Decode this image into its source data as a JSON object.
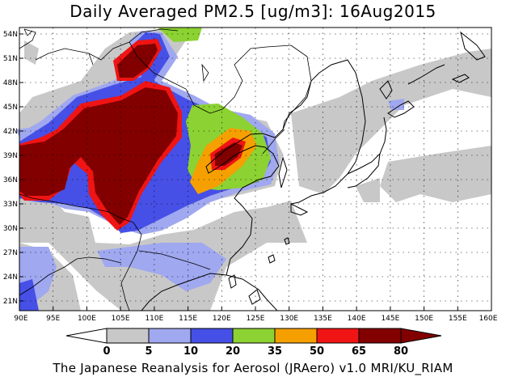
{
  "title": "Daily Averaged PM2.5 [ug/m3]: 16Aug2015",
  "footer": "The Japanese Reanalysis for Aerosol (JRAero) v1.0 MRI/KU_RIAM",
  "lat_labels": [
    "54N",
    "51N",
    "48N",
    "45N",
    "42N",
    "39N",
    "36N",
    "33N",
    "30N",
    "27N",
    "24N",
    "21N"
  ],
  "lon_labels": [
    "90E",
    "95E",
    "100E",
    "105E",
    "110E",
    "115E",
    "120E",
    "125E",
    "130E",
    "135E",
    "140E",
    "145E",
    "150E",
    "155E",
    "160E"
  ],
  "colorbar": {
    "levels": [
      "0",
      "5",
      "10",
      "20",
      "35",
      "50",
      "65",
      "80"
    ],
    "colors": [
      "#ffffff",
      "#c8c8c8",
      "#a0a8f0",
      "#4650e6",
      "#8cd232",
      "#f5a000",
      "#f01414",
      "#820000"
    ]
  },
  "extent": {
    "lon_min": 90,
    "lon_max": 160,
    "lat_min": 20,
    "lat_max": 55
  }
}
